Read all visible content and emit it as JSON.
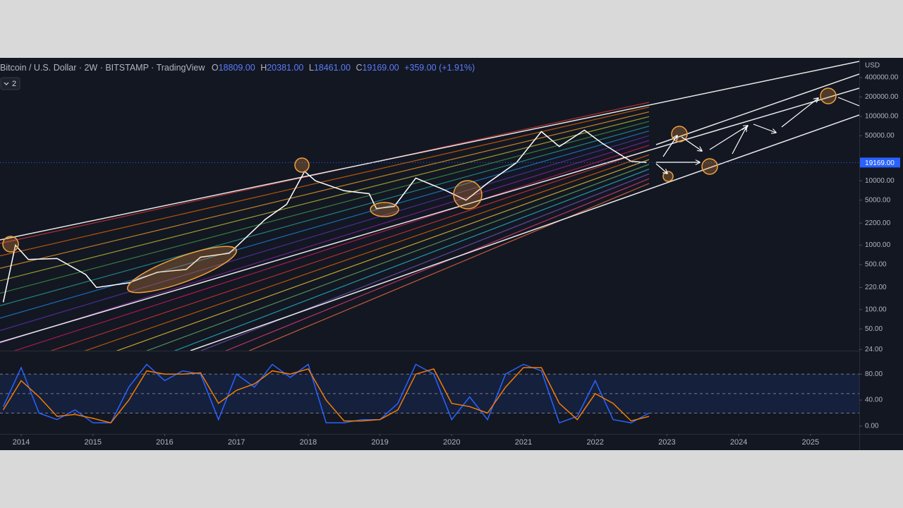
{
  "header": {
    "symbol": "Bitcoin / U.S. Dollar · 2W · BITSTAMP · TradingView",
    "open_label": "O",
    "open": "18809.00",
    "high_label": "H",
    "high": "20381.00",
    "low_label": "L",
    "low": "18461.00",
    "close_label": "C",
    "close": "19169.00",
    "change": "+359.00 (+1.91%)",
    "currency": "USD",
    "indicator_count": "2"
  },
  "chart_data": [
    {
      "type": "line",
      "log_scale": true,
      "x": [
        2013.75,
        2013.92,
        2014.1,
        2014.5,
        2014.9,
        2015.05,
        2015.5,
        2015.9,
        2016.3,
        2016.5,
        2016.9,
        2017.0,
        2017.4,
        2017.7,
        2017.95,
        2018.1,
        2018.5,
        2018.85,
        2018.95,
        2019.2,
        2019.5,
        2019.9,
        2020.2,
        2020.5,
        2020.9,
        2021.25,
        2021.5,
        2021.85,
        2022.1,
        2022.5,
        2022.72
      ],
      "series": [
        {
          "color": "#ffffff",
          "values": [
            130,
            1000,
            600,
            620,
            350,
            220,
            260,
            380,
            420,
            650,
            750,
            950,
            2500,
            4300,
            14000,
            10000,
            7000,
            6300,
            3700,
            4000,
            11000,
            7200,
            5000,
            9200,
            19000,
            58000,
            34000,
            61000,
            38000,
            20000,
            19169
          ]
        }
      ],
      "xlim": [
        2013.705,
        2025.68
      ],
      "xticks": [
        2014,
        2015,
        2016,
        2017,
        2018,
        2019,
        2020,
        2021,
        2022,
        2023,
        2024,
        2025
      ],
      "ylim": [
        23,
        810000
      ],
      "yticks": [
        {
          "value": 400000,
          "label": "400000.00"
        },
        {
          "value": 200000,
          "label": "200000.00"
        },
        {
          "value": 100000,
          "label": "100000.00"
        },
        {
          "value": 50000,
          "label": "50000.00"
        },
        {
          "value": 10000,
          "label": "10000.00"
        },
        {
          "value": 5000,
          "label": "5000.00"
        },
        {
          "value": 2200,
          "label": "2200.00"
        },
        {
          "value": 1000,
          "label": "1000.00"
        },
        {
          "value": 500,
          "label": "500.00"
        },
        {
          "value": 220,
          "label": "220.00"
        },
        {
          "value": 100,
          "label": "100.00"
        },
        {
          "value": 50,
          "label": "50.00"
        },
        {
          "value": 24,
          "label": "24.00"
        }
      ],
      "last_price": {
        "value": 19169,
        "label": "19169.00"
      }
    },
    {
      "type": "line",
      "x": [
        2013.75,
        2014.0,
        2014.25,
        2014.5,
        2014.75,
        2015.0,
        2015.25,
        2015.5,
        2015.75,
        2016.0,
        2016.25,
        2016.5,
        2016.75,
        2017.0,
        2017.25,
        2017.5,
        2017.75,
        2018.0,
        2018.25,
        2018.5,
        2018.75,
        2019.0,
        2019.25,
        2019.5,
        2019.75,
        2020.0,
        2020.25,
        2020.5,
        2020.75,
        2021.0,
        2021.25,
        2021.5,
        2021.75,
        2022.0,
        2022.25,
        2022.5,
        2022.75
      ],
      "series": [
        {
          "color": "#2962ff",
          "values": [
            30,
            90,
            20,
            10,
            25,
            5,
            5,
            60,
            95,
            70,
            85,
            80,
            10,
            80,
            60,
            95,
            75,
            95,
            5,
            5,
            10,
            10,
            35,
            95,
            80,
            10,
            45,
            10,
            80,
            95,
            85,
            5,
            15,
            70,
            10,
            5,
            20
          ]
        },
        {
          "color": "#f57c00",
          "values": [
            25,
            70,
            45,
            15,
            18,
            12,
            5,
            40,
            85,
            80,
            80,
            82,
            35,
            55,
            65,
            85,
            80,
            88,
            40,
            8,
            8,
            10,
            25,
            80,
            88,
            35,
            30,
            20,
            60,
            90,
            90,
            35,
            10,
            50,
            35,
            8,
            15
          ]
        }
      ],
      "xlim": [
        2013.705,
        2025.68
      ],
      "ylim": [
        -12,
        115
      ],
      "yticks": [
        {
          "value": 80,
          "label": "80.00"
        },
        {
          "value": 40,
          "label": "40.00"
        },
        {
          "value": 0,
          "label": "0.00"
        }
      ],
      "hlines": [
        80,
        50,
        20
      ]
    }
  ]
}
